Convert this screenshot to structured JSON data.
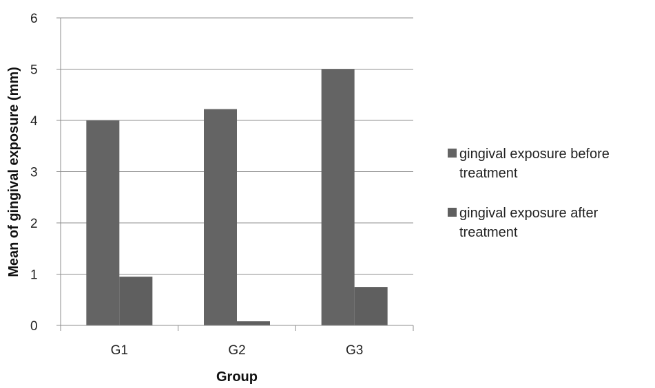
{
  "chart_data": {
    "type": "bar",
    "title": "",
    "xlabel": "Group",
    "ylabel": "Mean of gingival exposure (mm)",
    "categories": [
      "G1",
      "G2",
      "G3"
    ],
    "series": [
      {
        "name": "gingival exposure before treatment",
        "values": [
          4.0,
          4.22,
          5.0
        ],
        "color": "#636363"
      },
      {
        "name": "gingival exposure after treatment",
        "values": [
          0.95,
          0.08,
          0.75
        ],
        "color": "#636363"
      }
    ],
    "ylim": [
      0,
      6
    ],
    "yticks": [
      0,
      1,
      2,
      3,
      4,
      5,
      6
    ],
    "grid": true,
    "legend_position": "right",
    "legend_lines": [
      [
        "gingival exposure before",
        "treatment"
      ],
      [
        "gingival exposure after",
        "treatment"
      ]
    ]
  }
}
